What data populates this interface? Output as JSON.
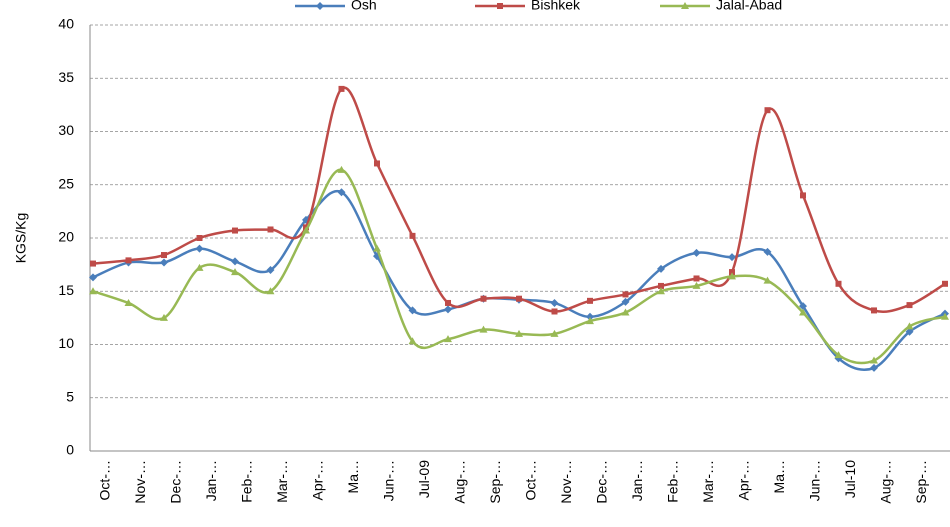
{
  "chart_data": {
    "type": "line",
    "y_label": "KGS/Kg",
    "categories": [
      "Oct-…",
      "Nov-…",
      "Dec-…",
      "Jan-…",
      "Feb-…",
      "Mar-…",
      "Apr-…",
      "Ma…",
      "Jun-…",
      "Jul-09",
      "Aug-…",
      "Sep-…",
      "Oct-…",
      "Nov-…",
      "Dec-…",
      "Jan-…",
      "Feb-…",
      "Mar-…",
      "Apr-…",
      "Ma…",
      "Jun-…",
      "Jul-10",
      "Aug-…",
      "Sep-…",
      "Oct-…"
    ],
    "series": [
      {
        "name": "Osh",
        "color": "#4a7ebb",
        "marker": "diamond",
        "values": [
          16.3,
          17.7,
          17.7,
          19.0,
          17.8,
          17.0,
          21.7,
          24.3,
          18.3,
          13.2,
          13.3,
          14.3,
          14.2,
          13.9,
          12.6,
          14.0,
          17.1,
          18.6,
          18.2,
          18.7,
          13.6,
          8.7,
          7.8,
          11.2,
          12.9
        ]
      },
      {
        "name": "Bishkek",
        "color": "#be4b48",
        "marker": "square",
        "values": [
          17.6,
          17.9,
          18.4,
          20.0,
          20.7,
          20.8,
          21.0,
          34.0,
          27.0,
          20.2,
          13.9,
          14.3,
          14.3,
          13.1,
          14.1,
          14.7,
          15.5,
          16.2,
          16.8,
          32.0,
          24.0,
          15.7,
          13.2,
          13.7,
          15.7
        ]
      },
      {
        "name": "Jalal-Abad",
        "color": "#98b954",
        "marker": "triangle",
        "values": [
          15.0,
          13.9,
          12.5,
          17.2,
          16.8,
          15.0,
          20.7,
          26.4,
          19.0,
          10.3,
          10.5,
          11.4,
          11.0,
          11.0,
          12.2,
          13.0,
          15.0,
          15.5,
          16.4,
          16.0,
          13.0,
          9.0,
          8.5,
          11.7,
          12.6
        ]
      }
    ],
    "ylim": [
      0,
      40
    ],
    "yticks": [
      0,
      5,
      10,
      15,
      20,
      25,
      30,
      35,
      40
    ],
    "grid": true,
    "legend": "top"
  }
}
